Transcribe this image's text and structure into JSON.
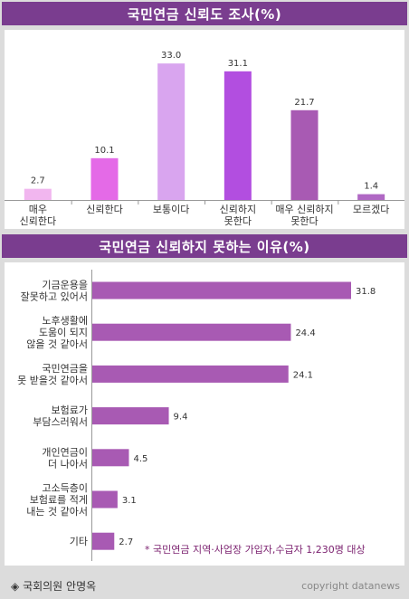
{
  "charts": {
    "trust": {
      "title": "국민연금 신뢰도 조사(%)"
    },
    "reasons": {
      "title": "국민연금 신뢰하지 못하는 이유(%)",
      "note": "* 국민연금 지역·사업장 가입자,수급자 1,230명 대상"
    }
  },
  "footer": {
    "source_marker": "◈",
    "source": "국회의원 안명옥",
    "copyright": "copyright datanews"
  },
  "chart_data": [
    {
      "type": "bar",
      "orientation": "vertical",
      "title": "국민연금 신뢰도 조사(%)",
      "categories": [
        [
          "매우",
          "신뢰한다"
        ],
        [
          "신뢰한다"
        ],
        [
          "보통이다"
        ],
        [
          "신뢰하지",
          "못한다"
        ],
        [
          "매우 신뢰하지",
          "못한다"
        ],
        [
          "모르겠다"
        ]
      ],
      "values": [
        2.7,
        10.1,
        33.0,
        31.1,
        21.7,
        1.4
      ],
      "value_labels": [
        "2.7",
        "10.1",
        "33.0",
        "31.1",
        "21.7",
        "1.4"
      ],
      "colors": [
        "#f1b6ef",
        "#e46ae7",
        "#d9a5ef",
        "#b24ee0",
        "#a85ab3",
        "#b068c4"
      ],
      "ylim": [
        0,
        35
      ],
      "grid": false,
      "legend": "none"
    },
    {
      "type": "bar",
      "orientation": "horizontal",
      "title": "국민연금 신뢰하지 못하는 이유(%)",
      "categories": [
        [
          "기금운용을",
          "잘못하고 있어서"
        ],
        [
          "노후생활에",
          "도움이 되지",
          "않을 것 같아서"
        ],
        [
          "국민연금을",
          "못 받을것 같아서"
        ],
        [
          "보험료가",
          "부담스러워서"
        ],
        [
          "개인연금이",
          "더 나아서"
        ],
        [
          "고소득층이",
          "보험료를 적게",
          "내는 것 같아서"
        ],
        [
          "기타"
        ]
      ],
      "values": [
        31.8,
        24.4,
        24.1,
        9.4,
        4.5,
        3.1,
        2.7
      ],
      "value_labels": [
        "31.8",
        "24.4",
        "24.1",
        "9.4",
        "4.5",
        "3.1",
        "2.7"
      ],
      "color": "#a85ab3",
      "xlim": [
        0,
        32
      ],
      "grid": false,
      "legend": "none"
    }
  ]
}
